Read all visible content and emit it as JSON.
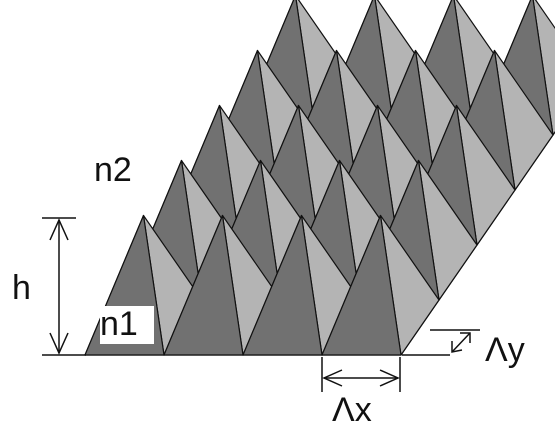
{
  "labels": {
    "n2": "n2",
    "n1": "n1",
    "h": "h",
    "period_x": "Λx",
    "period_y": "Λy"
  }
}
